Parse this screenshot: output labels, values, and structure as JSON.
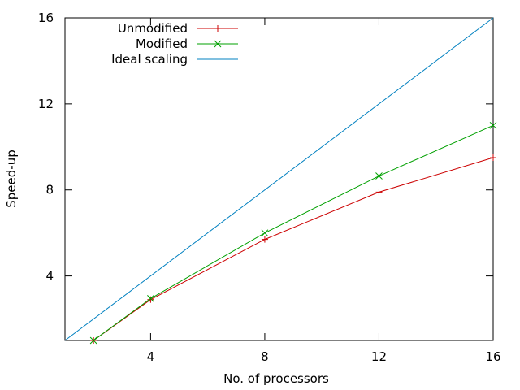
{
  "chart_data": {
    "type": "line",
    "title": "",
    "xlabel": "No. of processors",
    "ylabel": "Speed-up",
    "xlim": [
      1,
      16
    ],
    "ylim": [
      1,
      16
    ],
    "xticks": [
      4,
      8,
      12,
      16
    ],
    "yticks": [
      4,
      8,
      12,
      16
    ],
    "grid": false,
    "legend_position": "top-left",
    "series": [
      {
        "name": "Unmodified",
        "color": "#cc0000",
        "marker": "plus",
        "x": [
          2,
          4,
          8,
          12,
          16
        ],
        "y": [
          1.0,
          2.9,
          5.7,
          7.9,
          9.5
        ]
      },
      {
        "name": "Modified",
        "color": "#00a000",
        "marker": "cross",
        "x": [
          2,
          4,
          8,
          12,
          16
        ],
        "y": [
          1.0,
          2.95,
          6.0,
          8.65,
          11.0
        ]
      },
      {
        "name": "Ideal scaling",
        "color": "#0080c0",
        "marker": "none",
        "x": [
          1,
          16
        ],
        "y": [
          1,
          16
        ]
      }
    ]
  }
}
